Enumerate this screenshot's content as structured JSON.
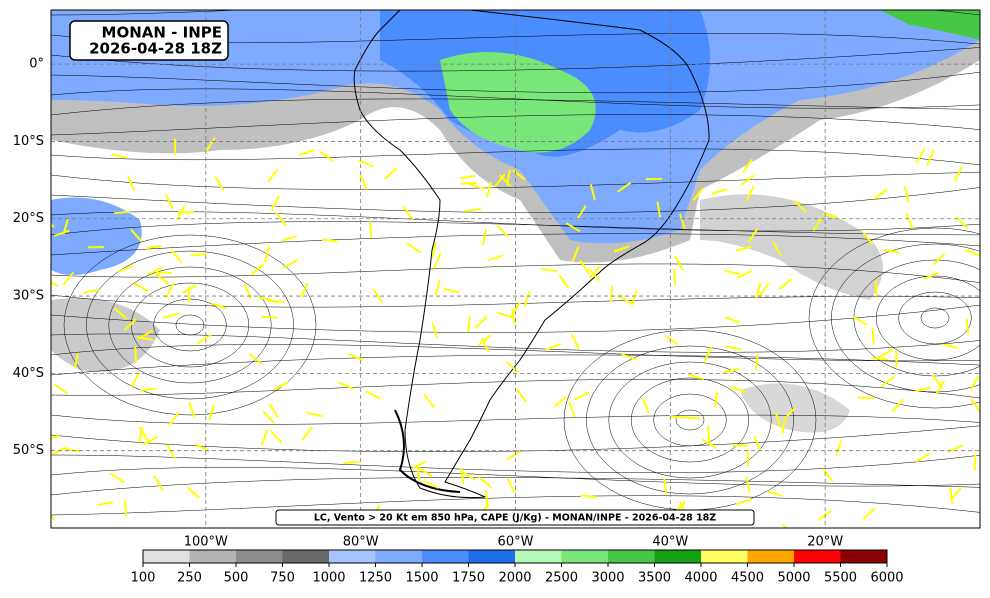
{
  "map": {
    "title": "MONAN - INPE",
    "subtitle": "2026-04-28 18Z",
    "caption": "LC, Vento > 20 Kt em 850 hPa, CAPE (J/Kg) - MONAN/INPE - 2026-04-28 18Z",
    "xlim": [
      -120,
      0
    ],
    "ylim": [
      -60,
      7
    ],
    "lon_ticks": [
      {
        "value": -100,
        "label": "100°W"
      },
      {
        "value": -80,
        "label": "80°W"
      },
      {
        "value": -60,
        "label": "60°W"
      },
      {
        "value": -40,
        "label": "40°W"
      },
      {
        "value": -20,
        "label": "20°W"
      }
    ],
    "lat_ticks": [
      {
        "value": 0,
        "label": "0°"
      },
      {
        "value": -10,
        "label": "10°S"
      },
      {
        "value": -20,
        "label": "20°S"
      },
      {
        "value": -30,
        "label": "30°S"
      },
      {
        "value": -40,
        "label": "40°S"
      },
      {
        "value": -50,
        "label": "50°S"
      }
    ],
    "colorbar": {
      "bounds": [
        100,
        250,
        500,
        750,
        1000,
        1250,
        1500,
        1750,
        2000,
        2500,
        3000,
        3500,
        4000,
        4500,
        5000,
        5500,
        6000
      ],
      "colors": [
        "#e1e1e1",
        "#b4b4b4",
        "#8c8c8c",
        "#696969",
        "#a6c4ff",
        "#7eaaff",
        "#4b8cff",
        "#1e6eeb",
        "#b4fab4",
        "#78e678",
        "#46c846",
        "#14a014",
        "#ffff64",
        "#ffa500",
        "#ff0000",
        "#8b0000"
      ]
    }
  }
}
